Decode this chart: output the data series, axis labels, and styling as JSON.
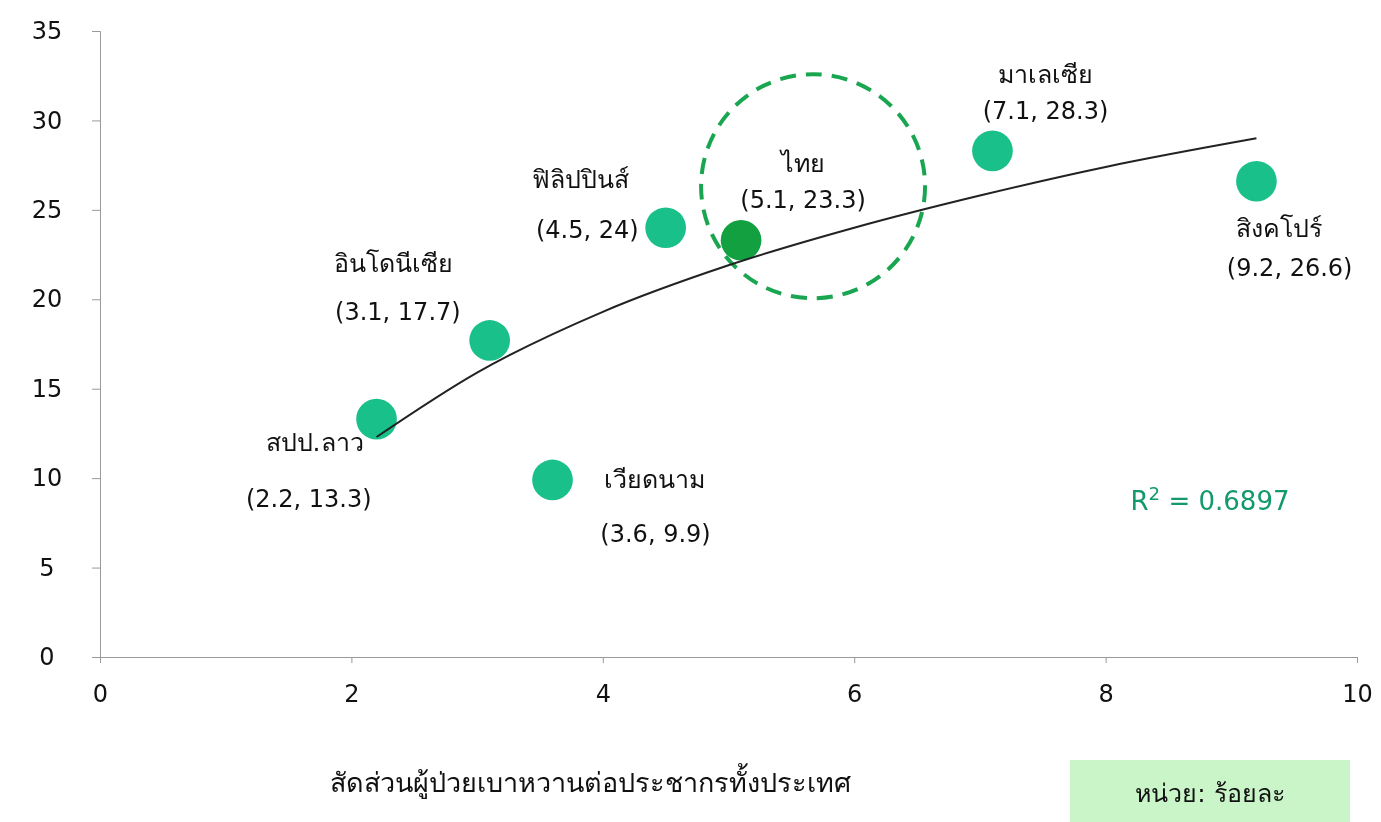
{
  "chart_data": {
    "type": "scatter",
    "xlabel": "สัดส่วนผู้ป่วยเบาหวานต่อประชากรทั้งประเทศ",
    "xlim": [
      0,
      10
    ],
    "xticks": [
      0,
      2,
      4,
      6,
      8,
      10
    ],
    "ylim": [
      0,
      35
    ],
    "yticks": [
      0,
      5,
      10,
      15,
      20,
      25,
      30,
      35
    ],
    "series": [
      {
        "marker": "circle",
        "x": [
          2.2,
          3.1,
          3.6,
          4.5,
          5.1,
          7.1,
          9.2
        ],
        "values": [
          13.3,
          17.7,
          9.9,
          24,
          23.3,
          28.3,
          26.6
        ],
        "colors": [
          "#19c08a",
          "#19c08a",
          "#19c08a",
          "#19c08a",
          "#12a040",
          "#19c08a",
          "#19c08a"
        ],
        "value_labels": [
          "(2.2, 13.3)",
          "(3.1, 17.7)",
          "(3.6, 9.9)",
          "(4.5, 24)",
          "(5.1, 23.3)",
          "(7.1, 28.3)",
          "(9.2, 26.6)"
        ]
      },
      {
        "type": "line",
        "color": "#222222",
        "x": [
          2.2,
          3,
          4,
          5,
          6,
          7,
          8,
          9.2
        ],
        "values": [
          12.3,
          15.9,
          19.3,
          21.9,
          24.0,
          25.8,
          27.4,
          29.0
        ]
      }
    ],
    "annotations": [
      {
        "text": "สปป.ลาว",
        "x": 2.2,
        "y": 13.3
      },
      {
        "text": "อินโดนีเซีย",
        "x": 3.1,
        "y": 17.7
      },
      {
        "text": "เวียดนาม",
        "x": 3.6,
        "y": 9.9
      },
      {
        "text": "ฟิลิปปินส์",
        "x": 4.5,
        "y": 24
      },
      {
        "text": "ไทย",
        "x": 5.1,
        "y": 23.3
      },
      {
        "text": "มาเลเซีย",
        "x": 7.1,
        "y": 28.3
      },
      {
        "text": "สิงคโปร์",
        "x": 9.2,
        "y": 26.6
      },
      "R$^{2}$ = 0.6897",
      "หน่วย: ร้อยละ"
    ]
  }
}
